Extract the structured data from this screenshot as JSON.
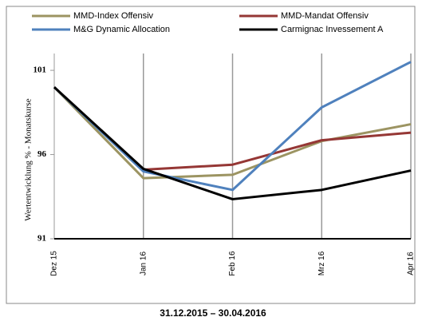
{
  "chart_data": {
    "type": "line",
    "y_axis_label": "Wertentwicklung % - Monatskurse",
    "subtitle": "31.12.2015 – 30.04.2016",
    "categories": [
      "Dez 15",
      "Jan 16",
      "Feb 16",
      "Mrz 16",
      "Apr 16"
    ],
    "series": [
      {
        "name": "MMD-Index Offensiv",
        "color": "#9c9462",
        "values": [
          100.0,
          94.6,
          94.8,
          96.8,
          97.8
        ]
      },
      {
        "name": "MMD-Mandat Offensiv",
        "color": "#953735",
        "values": [
          100.0,
          95.1,
          95.4,
          96.85,
          97.3
        ]
      },
      {
        "name": "M&G Dynamic Allocation",
        "color": "#4f81bd",
        "values": [
          100.0,
          95.0,
          93.9,
          98.8,
          101.5
        ]
      },
      {
        "name": "Carmignac Invessement A",
        "color": "#000000",
        "values": [
          100.0,
          95.15,
          93.35,
          93.9,
          95.05
        ]
      }
    ],
    "ylim": [
      91,
      102
    ],
    "yticks": [
      91,
      96,
      101
    ],
    "grid": "x"
  }
}
